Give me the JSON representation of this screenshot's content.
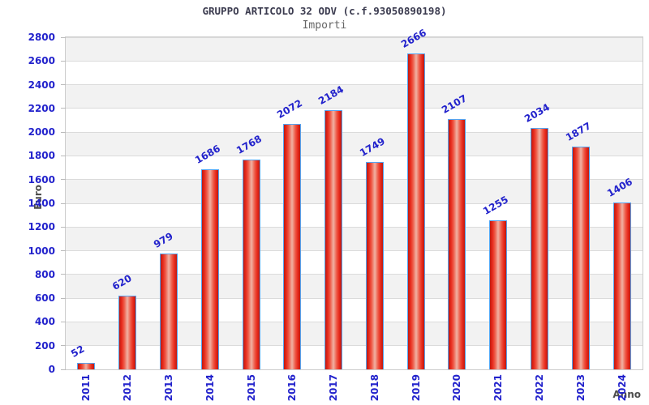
{
  "title": "GRUPPO ARTICOLO 32 ODV (c.f.93050890198)",
  "subtitle": "Importi",
  "chart_data": {
    "type": "bar",
    "title": "GRUPPO ARTICOLO 32 ODV (c.f.93050890198)",
    "subtitle": "Importi",
    "xlabel": "Anno",
    "ylabel": "Euro",
    "categories": [
      "2011",
      "2012",
      "2013",
      "2014",
      "2015",
      "2016",
      "2017",
      "2018",
      "2019",
      "2020",
      "2021",
      "2022",
      "2023",
      "2024"
    ],
    "values": [
      52,
      620,
      979,
      1686,
      1768,
      2072,
      2184,
      1749,
      2666,
      2107,
      1255,
      2034,
      1877,
      1406
    ],
    "value_labels": [
      "52",
      "620",
      "979",
      "1686",
      "1768",
      "2072",
      "2184",
      "1749",
      "2666",
      "2107",
      "1255",
      "2034",
      "1877",
      "1406"
    ],
    "ylim": [
      0,
      2800
    ],
    "ytick_step": 200,
    "yticks": [
      0,
      200,
      400,
      600,
      800,
      1000,
      1200,
      1400,
      1600,
      1800,
      2000,
      2200,
      2400,
      2600,
      2800
    ],
    "grid": "horizontal gridlines every 200 with alternating gray bands",
    "legend": "none",
    "colors": {
      "tick_label": "#2222cc",
      "value_label": "#2222cc",
      "bar_edge": "#55a4f0",
      "bar_red": "#e82a1c",
      "bar_red_dark": "#bd1a10",
      "bar_red_light": "#f0b2a4",
      "band_fill": "#f2f2f2",
      "grid_line": "#dbdbdb",
      "axis_label": "#4d4d4d",
      "title": "#3b3b4f",
      "subtitle": "#666666"
    }
  }
}
